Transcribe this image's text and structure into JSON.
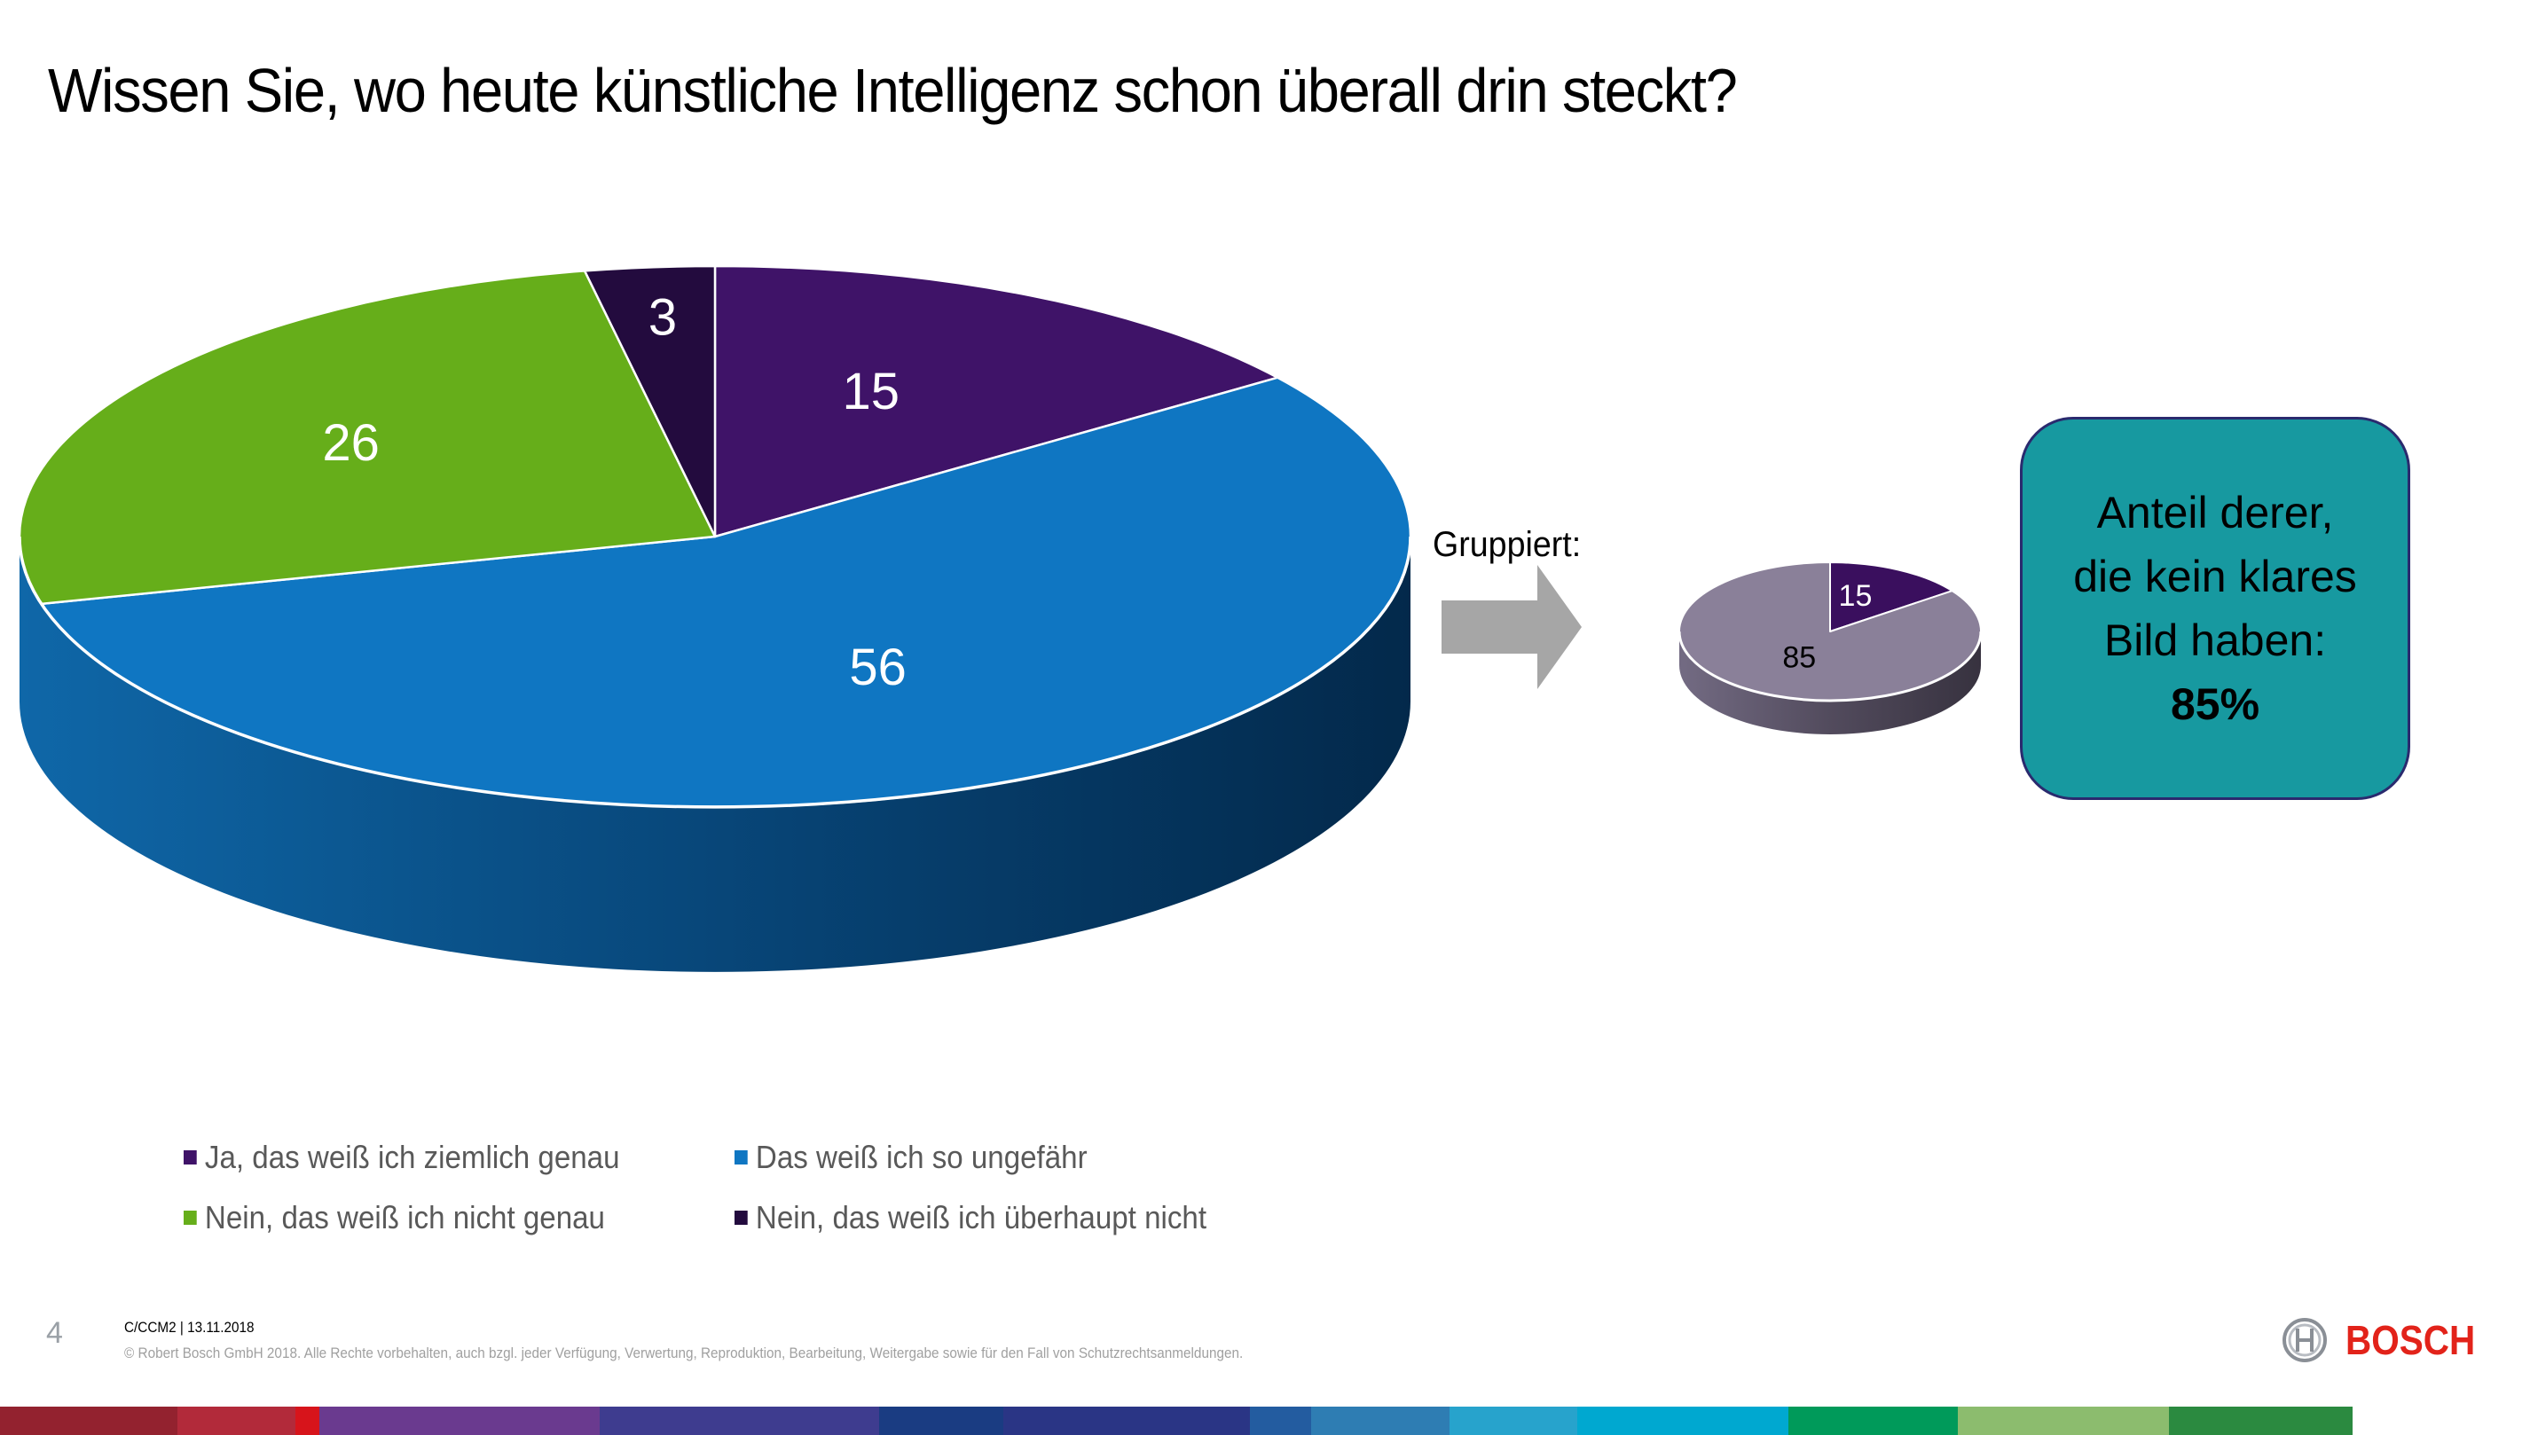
{
  "slide": {
    "title": "Wissen Sie, wo heute künstliche Intelligenz schon überall drin steckt?",
    "page_number": "4",
    "footer_meta": "C/CCM2 | 13.11.2018",
    "footer_copyright": "© Robert Bosch GmbH 2018. Alle Rechte vorbehalten, auch bzgl. jeder Verfügung, Verwertung, Reproduktion, Bearbeitung, Weitergabe sowie für den Fall von Schutzrechtsanmeldungen.",
    "logo_text": "BOSCH",
    "logo_icon": "bosch-armature-icon",
    "brand_color": "#e2231a",
    "grouped_label": "Gruppiert:",
    "arrow_icon": "right-arrow-icon",
    "callout": {
      "line1": "Anteil derer,",
      "line2": "die kein klares",
      "line3": "Bild haben:",
      "value": "85%",
      "background": "#1799a0"
    },
    "band_colors": [
      "#93222f",
      "#b22a3a",
      "#d7141b",
      "#6a3a8f",
      "#3e3c8f",
      "#1a3c82",
      "#2a3585",
      "#235ca0",
      "#2e7db3",
      "#27a3cc",
      "#00a8d0",
      "#009a5a",
      "#8cbc6e",
      "#2b8a40"
    ]
  },
  "chart_data": [
    {
      "type": "pie",
      "style": "3d",
      "title": "",
      "start_angle_deg": 0,
      "direction": "clockwise",
      "slices": [
        {
          "label": "Ja, das weiß ich ziemlich genau",
          "value": 15,
          "color": "#3f1368"
        },
        {
          "label": "Das weiß ich so ungefähr",
          "value": 56,
          "color": "#0f76c2"
        },
        {
          "label": "Nein, das weiß ich nicht genau",
          "value": 26,
          "color": "#66ae1a"
        },
        {
          "label": "Nein, das weiß ich überhaupt nicht",
          "value": 3,
          "color": "#230b3e"
        }
      ],
      "data_labels": true,
      "legend": {
        "placement": "bottom",
        "entries": [
          "Ja, das weiß ich ziemlich genau",
          "Das weiß ich so ungefähr",
          "Nein, das weiß ich nicht genau",
          "Nein, das weiß ich überhaupt nicht"
        ]
      }
    },
    {
      "type": "pie",
      "style": "3d",
      "title": "Gruppiert:",
      "start_angle_deg": 0,
      "direction": "clockwise",
      "slices": [
        {
          "label": "Ja, das weiß ich ziemlich genau",
          "value": 15,
          "color": "#3a0f5e",
          "label_color": "#ffffff"
        },
        {
          "label": "Kein klares Bild",
          "value": 85,
          "color": "#8a8099",
          "label_color": "#000000"
        }
      ],
      "data_labels": true
    }
  ]
}
